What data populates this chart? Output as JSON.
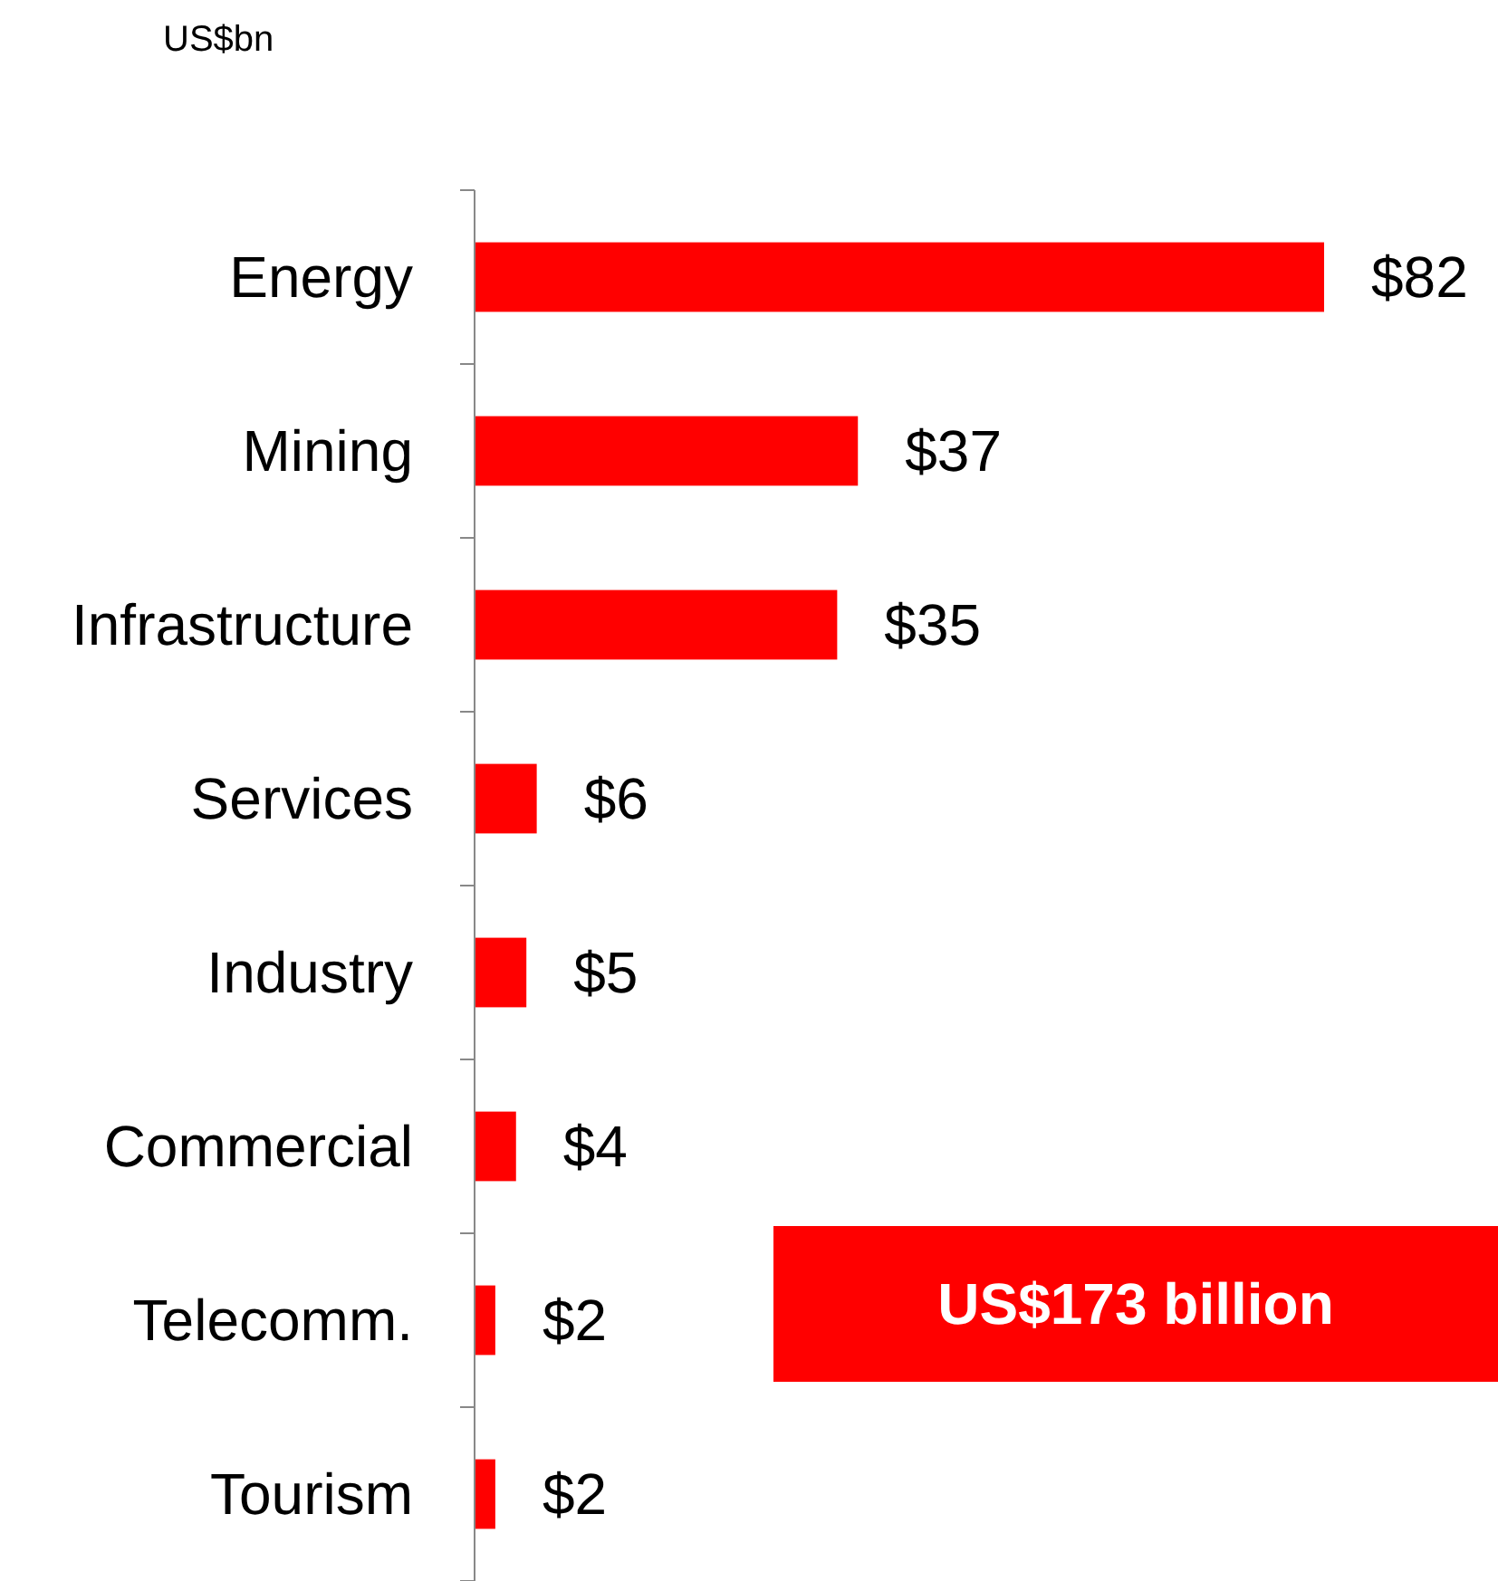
{
  "chart_data": {
    "type": "bar",
    "orientation": "horizontal",
    "categories": [
      "Energy",
      "Mining",
      "Infrastructure",
      "Services",
      "Industry",
      "Commercial",
      "Telecomm.",
      "Tourism"
    ],
    "values": [
      82,
      37,
      35,
      6,
      5,
      4,
      2,
      2
    ],
    "color": "#ff0000",
    "value_labels": [
      "$82",
      "$37",
      "$35",
      "$6",
      "$5",
      "$4",
      "$2",
      "$2"
    ],
    "annotations": [
      "US$bn",
      "US$173 billion"
    ]
  }
}
